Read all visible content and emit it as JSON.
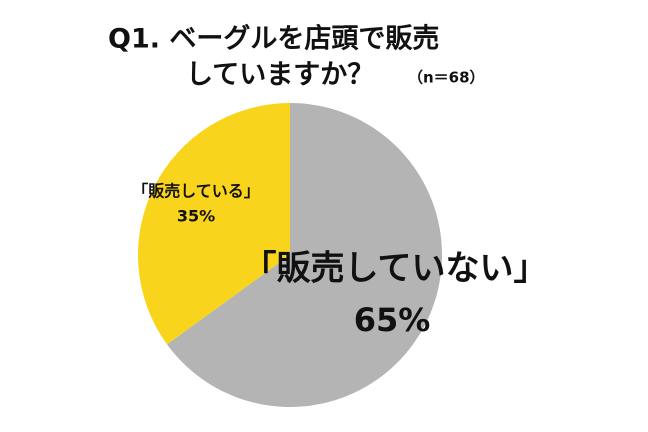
{
  "chart_data": {
    "type": "pie",
    "title": [
      "Q1. ベーグルを店頭で販売",
      "していますか？"
    ],
    "subtitle": "（n＝68）",
    "categories": [
      "「販売していない」",
      "「販売している」"
    ],
    "values": [
      65,
      35
    ],
    "value_labels": [
      "65%",
      "35%"
    ],
    "colors": [
      "#b4b4b4",
      "#f8d41c"
    ],
    "start": "top",
    "direction": "clockwise"
  }
}
